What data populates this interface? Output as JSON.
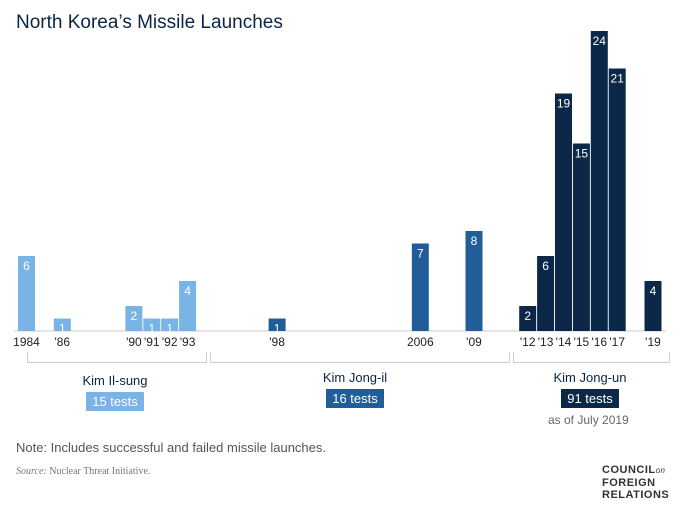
{
  "title": "North Korea’s Missile Launches",
  "chart_data": {
    "type": "bar",
    "title": "North Korea’s Missile Launches",
    "years": [
      1984,
      1986,
      1990,
      1991,
      1992,
      1993,
      1998,
      2006,
      2009,
      2012,
      2013,
      2014,
      2015,
      2016,
      2017,
      2019
    ],
    "tick_labels": [
      "1984",
      "'86",
      "'90",
      "'91",
      "'92",
      "'93",
      "'98",
      "2006",
      "'09",
      "'12",
      "'13",
      "'14",
      "'15",
      "'16",
      "'17",
      "'19"
    ],
    "values": [
      6,
      1,
      2,
      1,
      1,
      4,
      1,
      7,
      8,
      2,
      6,
      19,
      15,
      24,
      21,
      4
    ],
    "leader": [
      0,
      0,
      0,
      0,
      0,
      0,
      1,
      1,
      1,
      2,
      2,
      2,
      2,
      2,
      2,
      2
    ]
  },
  "leaders": [
    {
      "name": "Kim Il-sung",
      "tests": "15 tests",
      "color": "#7ab3e6"
    },
    {
      "name": "Kim Jong-il",
      "tests": "16 tests",
      "color": "#215d99"
    },
    {
      "name": "Kim Jong-un",
      "tests": "91 tests",
      "color": "#0b2848"
    }
  ],
  "as_of": "as of July 2019",
  "note": "Note: Includes successful and failed missile launches.",
  "source_label": "Source:",
  "source": " Nuclear Threat Initiative.",
  "logo": "COUNCIL on FOREIGN RELATIONS"
}
